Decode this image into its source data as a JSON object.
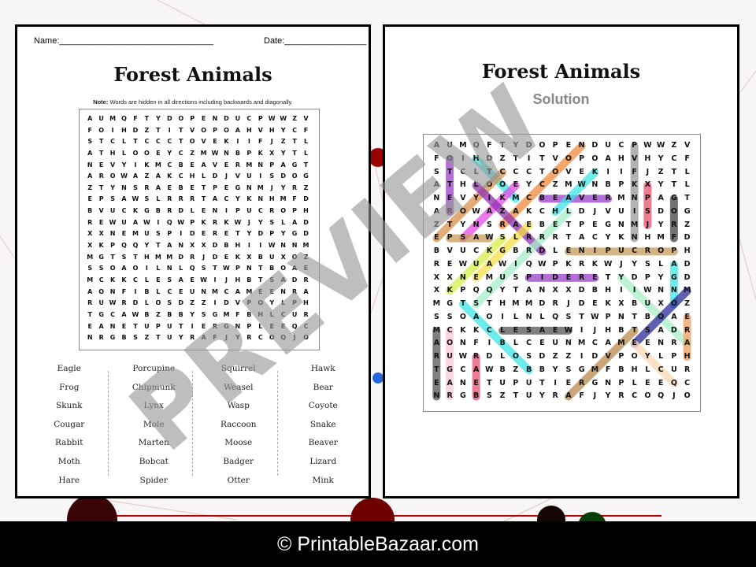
{
  "worksheet": {
    "name_label": "Name:________________________________",
    "date_label": "Date:_________________",
    "title": "Forest Animals",
    "note_bold": "Note:",
    "note_text": " Words are hidden in all directions including backwards and diagonally.",
    "grid": [
      "AUMQFTYDOPENDUCPWWZV",
      "FOIHDZTITVOPOAHVHYCF",
      "STCLTCCCTOVEKIIFJZTL",
      "ATHLOOEYCZMWNBPKXYTL",
      "NEVYIKMCBEAVERMNPAGT",
      "AROWAZAKCHLDJVUISDOG",
      "ZTYNSRAEBETPEGNMJYRZ",
      "EPSAWSLRRRTACYKNHMFD",
      "BVUCKGBRDLENIPUCROPH",
      "REWUAWIQWPKRKWJYSLAD",
      "XXNEMUSPIDERETYDPYGD",
      "XKPQQYTANXXDBHIIWNNM",
      "MGTSTHMMDRJDEKXBUXOZ",
      "SSOAOILNLQSTWPNTBOAE",
      "MCKKCLESAEWIJHBTSADR",
      "AONFIBLCEUNMCAMEENRA",
      "RUWRDLOSDZZIDVPOYLPH",
      "TGCAWBZBBYSGMFBHLCUR",
      "EANETUPUTIERGNPLEEQC",
      "NRGBSZTUYRAFJYRCOQJO"
    ],
    "word_columns": [
      [
        "Eagle",
        "Frog",
        "Skunk",
        "Cougar",
        "Rabbit",
        "Moth",
        "Hare"
      ],
      [
        "Porcupine",
        "Chipmunk",
        "Lynx",
        "Mole",
        "Marten",
        "Bobcat",
        "Spider"
      ],
      [
        "Squirrel",
        "Weasel",
        "Wasp",
        "Raccoon",
        "Moose",
        "Badger",
        "Otter"
      ],
      [
        "Hawk",
        "Bear",
        "Coyote",
        "Snake",
        "Beaver",
        "Lizard",
        "Mink"
      ]
    ]
  },
  "solution": {
    "title": "Forest Animals",
    "subtitle": "Solution",
    "highlights": [
      {
        "word": "OTTER",
        "from": [
          1,
          1
        ],
        "to": [
          5,
          1
        ],
        "color": "#9b3fc9"
      },
      {
        "word": "MOTH",
        "from": [
          4,
          6
        ],
        "to": [
          1,
          3
        ],
        "color": "#3ee6e6"
      },
      {
        "word": "RACCOON",
        "from": [
          6,
          5
        ],
        "to": [
          0,
          11
        ],
        "color": "#f08a3c"
      },
      {
        "word": "COYOTE",
        "from": [
          2,
          5
        ],
        "to": [
          7,
          0
        ],
        "color": "#d9904a"
      },
      {
        "word": "SNAKE",
        "from": [
          7,
          2
        ],
        "to": [
          3,
          6
        ],
        "color": "#e64de6"
      },
      {
        "word": "LIZARD",
        "from": [
          3,
          3
        ],
        "to": [
          8,
          8
        ],
        "color": "#8e2fb0"
      },
      {
        "word": "BEAVER",
        "from": [
          4,
          8
        ],
        "to": [
          4,
          13
        ],
        "color": "#9b3fc9"
      },
      {
        "word": "HAWK",
        "from": [
          5,
          9
        ],
        "to": [
          2,
          12
        ],
        "color": "#3ee6e6"
      },
      {
        "word": "SQUIRREL",
        "from": [
          12,
          3
        ],
        "to": [
          5,
          10
        ],
        "color": "#a8f0c8"
      },
      {
        "word": "EAGLE",
        "from": [
          10,
          3
        ],
        "to": [
          6,
          7
        ],
        "color": "#f5e04a"
      },
      {
        "word": "SKUNK",
        "from": [
          7,
          5
        ],
        "to": [
          11,
          1
        ],
        "color": "#d8f04a"
      },
      {
        "word": "WASP",
        "from": [
          7,
          4
        ],
        "to": [
          7,
          1
        ],
        "color": "#c89a5a"
      },
      {
        "word": "PORCUPINE",
        "from": [
          8,
          18
        ],
        "to": [
          8,
          10
        ],
        "color": "#c89a5a"
      },
      {
        "word": "CHIPMUNK",
        "from": [
          0,
          15
        ],
        "to": [
          7,
          15
        ],
        "color": "#999999"
      },
      {
        "word": "MINK",
        "from": [
          6,
          16
        ],
        "to": [
          3,
          16
        ],
        "color": "#e8506e"
      },
      {
        "word": "FROG",
        "from": [
          7,
          18
        ],
        "to": [
          4,
          18
        ],
        "color": "#444444"
      },
      {
        "word": "SPIDER",
        "from": [
          10,
          7
        ],
        "to": [
          10,
          12
        ],
        "color": "#9b3fc9"
      },
      {
        "word": "LYNX",
        "from": [
          9,
          18
        ],
        "to": [
          12,
          18
        ],
        "color": "#3ee6e6"
      },
      {
        "word": "RABBIT",
        "from": [
          15,
          19
        ],
        "to": [
          10,
          14
        ],
        "color": "#a8f0c8"
      },
      {
        "word": "MOOSE",
        "from": [
          11,
          19
        ],
        "to": [
          15,
          15
        ],
        "color": "#2b2b9a"
      },
      {
        "word": "BOBCAT",
        "from": [
          17,
          7
        ],
        "to": [
          12,
          2
        ],
        "color": "#3ee6e6"
      },
      {
        "word": "WEASEL",
        "from": [
          14,
          10
        ],
        "to": [
          14,
          5
        ],
        "color": "#555555"
      },
      {
        "word": "MARTEN",
        "from": [
          14,
          0
        ],
        "to": [
          19,
          0
        ],
        "color": "#555555"
      },
      {
        "word": "COUGAR",
        "from": [
          14,
          1
        ],
        "to": [
          19,
          1
        ],
        "color": "#f8c8dc"
      },
      {
        "word": "BEAR",
        "from": [
          19,
          3
        ],
        "to": [
          16,
          3
        ],
        "color": "#e8506e"
      },
      {
        "word": "HARE",
        "from": [
          16,
          19
        ],
        "to": [
          13,
          19
        ],
        "color": "#f0a060"
      },
      {
        "word": "BADGER",
        "from": [
          14,
          15
        ],
        "to": [
          19,
          10
        ],
        "color": "#b88a50"
      },
      {
        "word": "MOLE",
        "from": [
          15,
          15
        ],
        "to": [
          18,
          18
        ],
        "color": "#fcd8b8"
      }
    ]
  },
  "watermark": "PREVIEW",
  "footer": "© PrintableBazaar.com"
}
